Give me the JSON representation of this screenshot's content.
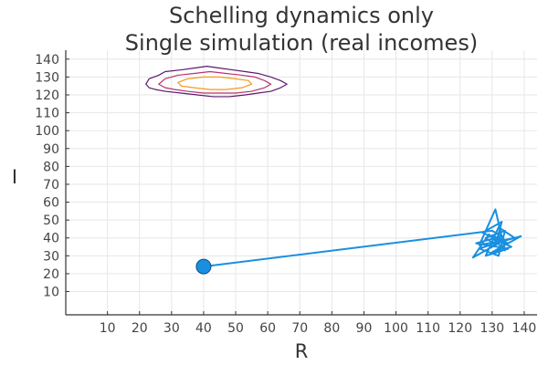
{
  "chart_data": {
    "type": "line",
    "title_lines": [
      "Schelling dynamics only",
      "Single simulation (real incomes)"
    ],
    "xlabel": "R",
    "ylabel": "I",
    "xlim": [
      -3,
      144
    ],
    "ylim": [
      -3,
      145
    ],
    "x_ticks": [
      10,
      20,
      30,
      40,
      50,
      60,
      70,
      80,
      90,
      100,
      110,
      120,
      130,
      140
    ],
    "y_ticks": [
      10,
      20,
      30,
      40,
      50,
      60,
      70,
      80,
      90,
      100,
      110,
      120,
      130,
      140
    ],
    "grid": true,
    "legend": "none",
    "colors": {
      "trajectory": "#1a8fe0",
      "start_marker": "#1a8fe0",
      "contour_outer": "#5a1a6e",
      "contour_mid": "#b8336a",
      "contour_inner": "#f39a1d"
    },
    "series": [
      {
        "values": [
          [
            40,
            24
          ],
          [
            130,
            44
          ],
          [
            133,
            41
          ],
          [
            125,
            37
          ],
          [
            135,
            34
          ],
          [
            128,
            30
          ],
          [
            132,
            46
          ],
          [
            137,
            40
          ],
          [
            126,
            36
          ],
          [
            131,
            56
          ],
          [
            134,
            33
          ],
          [
            129,
            42
          ],
          [
            124,
            29
          ],
          [
            133,
            38
          ],
          [
            139,
            41
          ],
          [
            130,
            32
          ],
          [
            136,
            35
          ],
          [
            127,
            43
          ],
          [
            133,
            49
          ],
          [
            131,
            36
          ],
          [
            128,
            40
          ],
          [
            134,
            44
          ],
          [
            132,
            30
          ],
          [
            126,
            34
          ],
          [
            134,
            39
          ],
          [
            130,
            41
          ],
          [
            135,
            37
          ],
          [
            131,
            33
          ]
        ]
      }
    ],
    "start_point": [
      40,
      24
    ],
    "contours": [
      {
        "level": "outer",
        "points": [
          [
            22,
            126
          ],
          [
            23,
            129
          ],
          [
            26,
            131
          ],
          [
            28,
            133
          ],
          [
            33,
            134
          ],
          [
            37,
            135
          ],
          [
            41,
            136
          ],
          [
            45,
            135
          ],
          [
            49,
            134
          ],
          [
            53,
            133
          ],
          [
            57,
            132
          ],
          [
            61,
            130
          ],
          [
            64,
            128
          ],
          [
            66,
            126
          ],
          [
            64,
            124
          ],
          [
            61,
            122
          ],
          [
            57,
            121
          ],
          [
            53,
            120
          ],
          [
            48,
            119
          ],
          [
            43,
            119
          ],
          [
            38,
            120
          ],
          [
            33,
            121
          ],
          [
            28,
            122
          ],
          [
            25,
            123
          ],
          [
            23,
            124
          ]
        ]
      },
      {
        "level": "mid",
        "points": [
          [
            26,
            126
          ],
          [
            28,
            129
          ],
          [
            32,
            131
          ],
          [
            37,
            132
          ],
          [
            42,
            133
          ],
          [
            47,
            132
          ],
          [
            52,
            131
          ],
          [
            56,
            130
          ],
          [
            59,
            128
          ],
          [
            61,
            126
          ],
          [
            59,
            124
          ],
          [
            55,
            122
          ],
          [
            50,
            121
          ],
          [
            45,
            121
          ],
          [
            40,
            121
          ],
          [
            35,
            122
          ],
          [
            31,
            123
          ],
          [
            28,
            124
          ]
        ]
      },
      {
        "level": "inner",
        "points": [
          [
            32,
            127
          ],
          [
            35,
            129
          ],
          [
            40,
            130
          ],
          [
            45,
            130
          ],
          [
            50,
            129
          ],
          [
            54,
            128
          ],
          [
            55,
            126
          ],
          [
            52,
            124
          ],
          [
            47,
            123
          ],
          [
            42,
            123
          ],
          [
            37,
            124
          ],
          [
            33,
            125
          ]
        ]
      }
    ]
  }
}
